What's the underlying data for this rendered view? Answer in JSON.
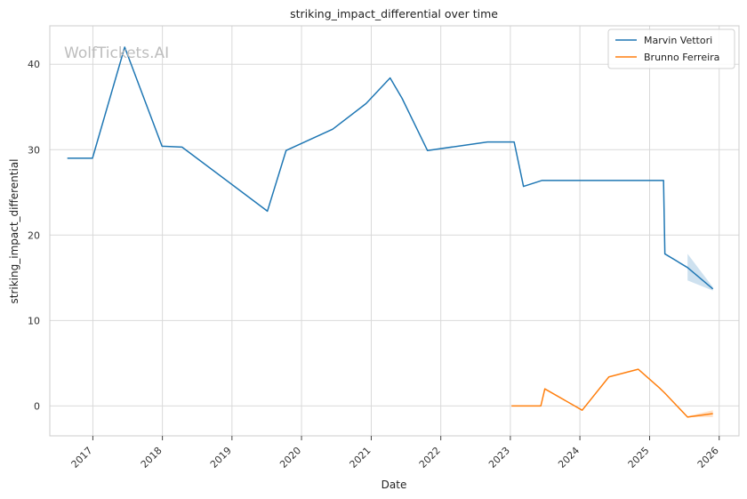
{
  "chart_data": {
    "type": "line",
    "title": "striking_impact_differential over time",
    "xlabel": "Date",
    "ylabel": "striking_impact_differential",
    "watermark": "WolfTickets.AI",
    "xlim": [
      "2016-05-20",
      "2026-04-15"
    ],
    "ylim": [
      -3.5,
      44.5
    ],
    "x_ticks": [
      "2017-01-01",
      "2018-01-01",
      "2019-01-01",
      "2020-01-01",
      "2021-01-01",
      "2022-01-01",
      "2023-01-01",
      "2024-01-01",
      "2025-01-01",
      "2026-01-01"
    ],
    "x_tick_labels": [
      "2017",
      "2018",
      "2019",
      "2020",
      "2021",
      "2022",
      "2023",
      "2024",
      "2025",
      "2026"
    ],
    "y_ticks": [
      0,
      10,
      20,
      30,
      40
    ],
    "y_tick_labels": [
      "0",
      "10",
      "20",
      "30",
      "40"
    ],
    "grid": true,
    "legend_position": "top-right",
    "series": [
      {
        "name": "Marvin Vettori",
        "color": "#1f77b4",
        "x": [
          "2016-08-20",
          "2016-12-30",
          "2017-06-17",
          "2017-12-30",
          "2018-04-14",
          "2019-07-06",
          "2019-10-12",
          "2020-06-13",
          "2020-12-05",
          "2021-04-10",
          "2021-06-12",
          "2021-10-23",
          "2022-09-03",
          "2023-01-21",
          "2023-03-11",
          "2023-06-17",
          "2025-03-15",
          "2025-03-22",
          "2025-07-19",
          "2025-11-29"
        ],
        "y": [
          29.0,
          29.0,
          42.0,
          30.4,
          30.3,
          22.8,
          29.9,
          32.4,
          35.4,
          38.4,
          36.0,
          29.9,
          30.9,
          30.9,
          25.7,
          26.4,
          26.4,
          17.8,
          16.2,
          13.7
        ],
        "band": {
          "x": [
            "2025-07-19",
            "2025-11-29"
          ],
          "lower": [
            14.7,
            13.5
          ],
          "upper": [
            17.8,
            13.9
          ]
        }
      },
      {
        "name": "Brunno Ferreira",
        "color": "#ff7f0e",
        "x": [
          "2023-01-07",
          "2023-06-10",
          "2023-07-01",
          "2024-01-13",
          "2024-06-01",
          "2024-11-02",
          "2025-02-22",
          "2025-03-22",
          "2025-07-19",
          "2025-11-29"
        ],
        "y": [
          0.0,
          0.0,
          2.0,
          -0.5,
          3.4,
          4.3,
          2.1,
          1.5,
          -1.3,
          -0.9
        ],
        "band": {
          "x": [
            "2025-07-19",
            "2025-11-29"
          ],
          "lower": [
            -1.3,
            -1.3
          ],
          "upper": [
            -1.2,
            -0.5
          ]
        }
      }
    ]
  }
}
